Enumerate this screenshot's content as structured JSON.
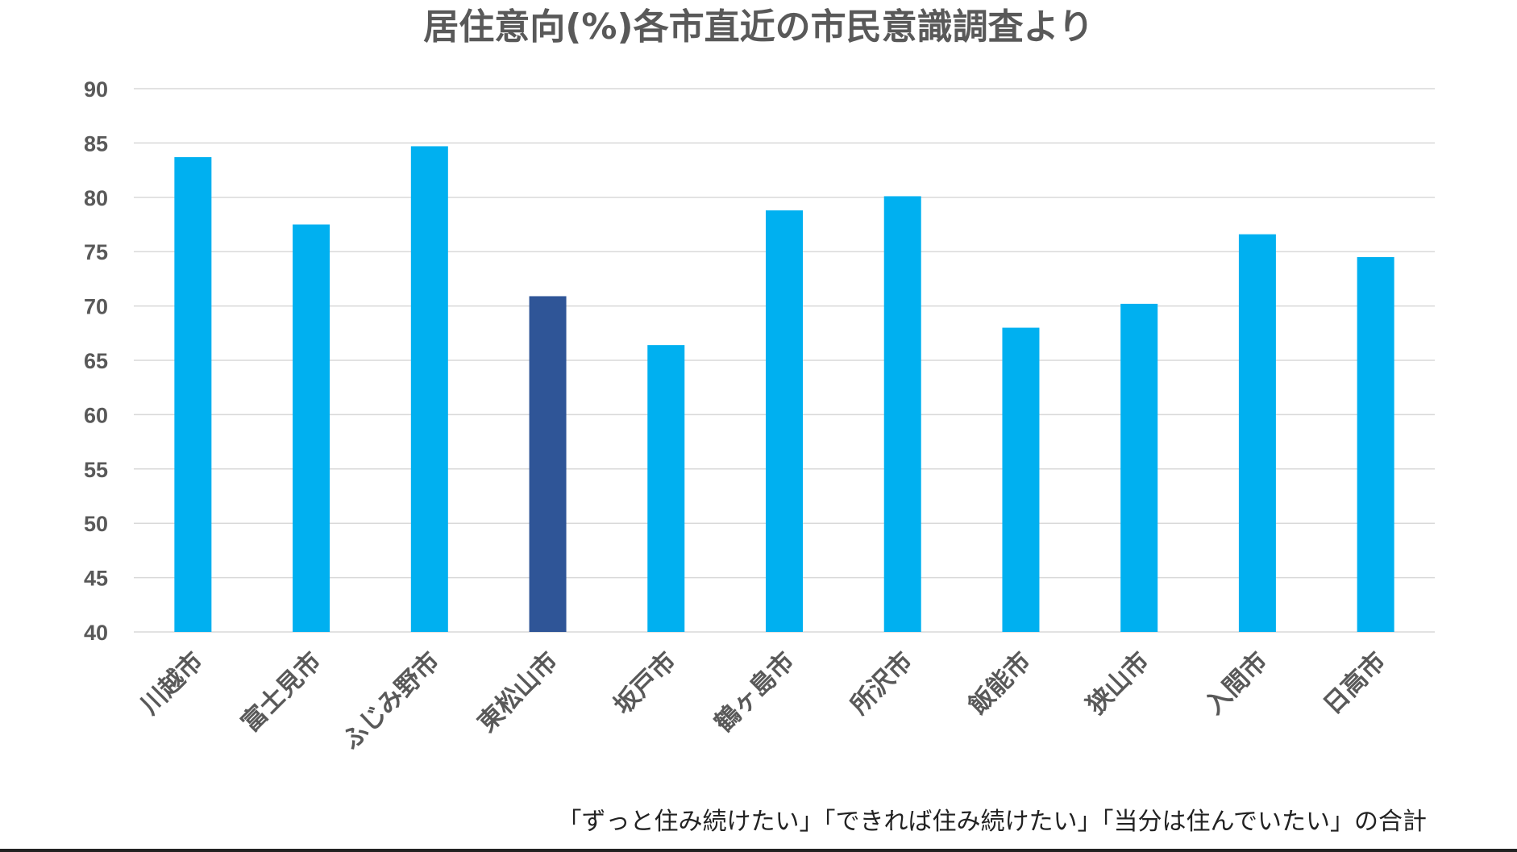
{
  "chart_data": {
    "type": "bar",
    "title": "居住意向(%)各市直近の市民意識調査より",
    "categories": [
      "川越市",
      "富士見市",
      "ふじみ野市",
      "東松山市",
      "坂戸市",
      "鶴ヶ島市",
      "所沢市",
      "飯能市",
      "狭山市",
      "入間市",
      "日高市"
    ],
    "values": [
      83.7,
      77.5,
      84.7,
      70.9,
      66.4,
      78.8,
      80.1,
      68.0,
      70.2,
      76.6,
      74.5
    ],
    "highlight_category": "東松山市",
    "ylim": [
      40,
      90
    ],
    "yticks": [
      40,
      45,
      50,
      55,
      60,
      65,
      70,
      75,
      80,
      85,
      90
    ],
    "xlabel": "",
    "ylabel": "",
    "grid": true,
    "colors": {
      "bar": "#00b0f0",
      "highlight": "#2f5597",
      "grid": "#d9d9d9",
      "text": "#595959"
    },
    "footnote": "「ずっと住み続けたい」「できれば住み続けたい」「当分は住んでいたい」の合計"
  }
}
